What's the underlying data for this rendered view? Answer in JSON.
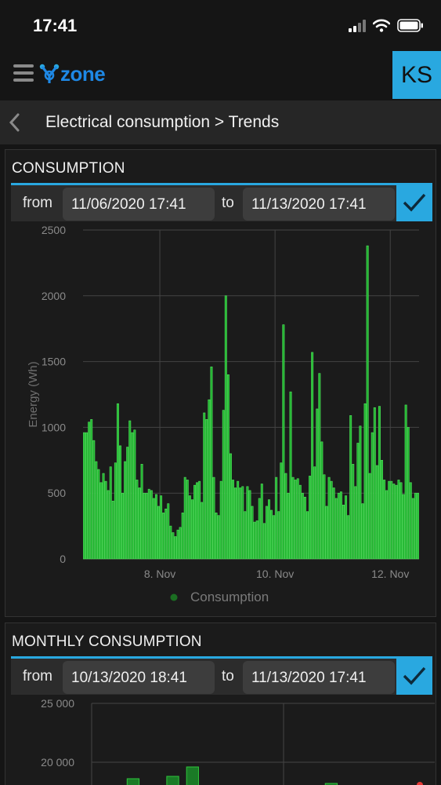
{
  "status": {
    "time": "17:41"
  },
  "header": {
    "logo_text": "zone",
    "avatar_initials": "KS"
  },
  "breadcrumb": {
    "text": "Electrical consumption > Trends"
  },
  "consumption": {
    "title": "CONSUMPTION",
    "from_label": "from",
    "from_value": "11/06/2020 17:41",
    "to_label": "to",
    "to_value": "11/13/2020 17:41"
  },
  "monthly": {
    "title": "MONTHLY CONSUMPTION",
    "from_label": "from",
    "from_value": "10/13/2020 18:41",
    "to_label": "to",
    "to_value": "11/13/2020 17:41"
  },
  "chart_data": [
    {
      "type": "bar",
      "ylabel": "Energy (Wh)",
      "ylim": [
        0,
        2500
      ],
      "yticks": [
        "0",
        "500",
        "1000",
        "1500",
        "2000",
        "2500"
      ],
      "xticks": [
        {
          "label": "8. Nov",
          "index": 32
        },
        {
          "label": "10. Nov",
          "index": 80
        },
        {
          "label": "12. Nov",
          "index": 128
        }
      ],
      "grid": true,
      "legend": "bottom",
      "series": [
        {
          "name": "Consumption",
          "color": "#22b531",
          "values": [
            960,
            960,
            1040,
            1060,
            900,
            740,
            680,
            580,
            650,
            590,
            520,
            700,
            440,
            730,
            1180,
            860,
            500,
            740,
            850,
            1050,
            960,
            980,
            600,
            540,
            720,
            500,
            500,
            530,
            520,
            460,
            490,
            400,
            480,
            350,
            380,
            420,
            250,
            200,
            170,
            220,
            240,
            350,
            620,
            600,
            480,
            450,
            560,
            580,
            590,
            430,
            1110,
            1060,
            1210,
            1460,
            620,
            350,
            330,
            590,
            1130,
            2000,
            1400,
            800,
            600,
            540,
            590,
            540,
            550,
            360,
            550,
            520,
            400,
            280,
            290,
            460,
            570,
            270,
            400,
            450,
            370,
            330,
            620,
            360,
            730,
            1780,
            650,
            500,
            1270,
            620,
            600,
            610,
            560,
            500,
            470,
            360,
            630,
            1570,
            700,
            1140,
            1410,
            890,
            640,
            400,
            620,
            590,
            540,
            460,
            500,
            510,
            410,
            480,
            330,
            1090,
            720,
            550,
            880,
            1010,
            420,
            1180,
            2380,
            650,
            960,
            1150,
            710,
            1160,
            750,
            600,
            520,
            590,
            590,
            570,
            560,
            600,
            580,
            490,
            1170,
            1000,
            580,
            460,
            500,
            500
          ]
        }
      ]
    },
    {
      "type": "bar",
      "ylim": [
        0,
        25000
      ],
      "yticks": [
        "20 000",
        "25 000"
      ],
      "grid": true,
      "series": [
        {
          "name": "Monthly consumption",
          "color": "#22b531",
          "values": [
            0,
            18600,
            0,
            18800,
            19600,
            0,
            0,
            0,
            0,
            0,
            0,
            18200,
            0,
            0,
            0,
            18000,
            18000
          ]
        }
      ]
    }
  ]
}
